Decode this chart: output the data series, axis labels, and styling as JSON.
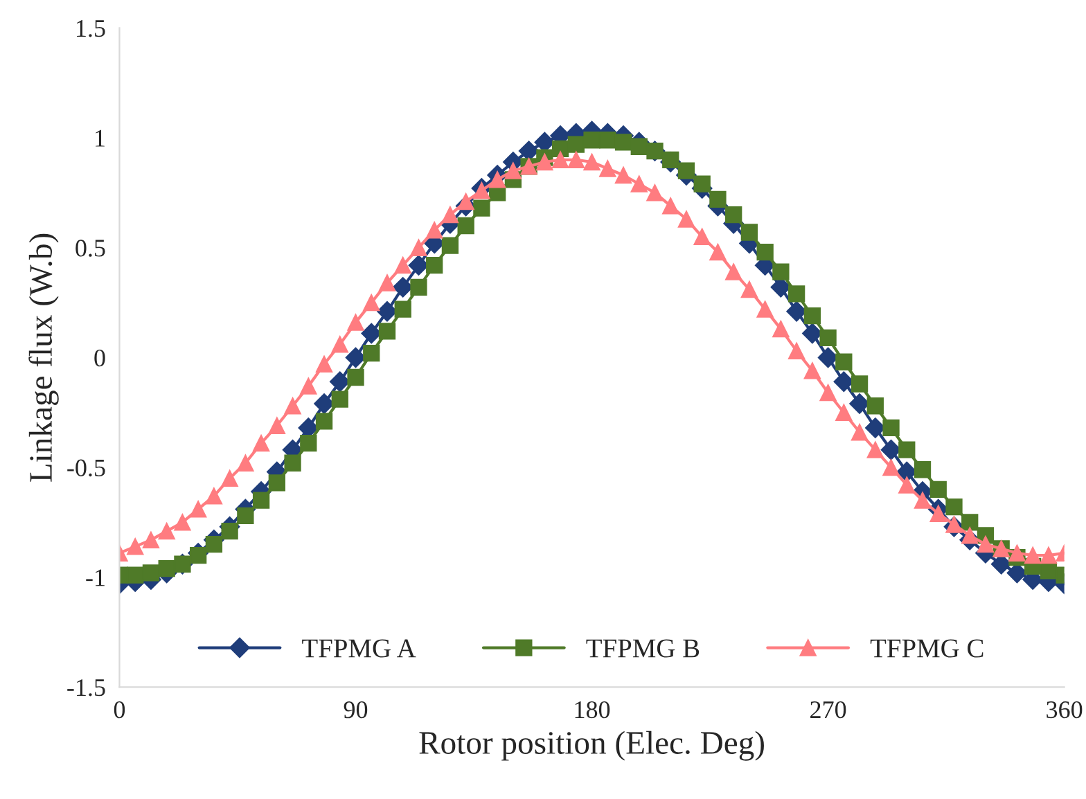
{
  "chart_data": {
    "type": "line",
    "xlabel": "Rotor position (Elec. Deg)",
    "ylabel": "Linkage flux (W.b)",
    "x": [
      0,
      6,
      12,
      18,
      24,
      30,
      36,
      42,
      48,
      54,
      60,
      66,
      72,
      78,
      84,
      90,
      96,
      102,
      108,
      114,
      120,
      126,
      132,
      138,
      144,
      150,
      156,
      162,
      168,
      174,
      180,
      186,
      192,
      198,
      204,
      210,
      216,
      222,
      228,
      234,
      240,
      246,
      252,
      258,
      264,
      270,
      276,
      282,
      288,
      294,
      300,
      306,
      312,
      318,
      324,
      330,
      336,
      342,
      348,
      354,
      360
    ],
    "series": [
      {
        "name": "TFPMG A",
        "color": "#1f3d7a",
        "marker": "diamond",
        "values": [
          -1.03,
          -1.02,
          -1.01,
          -0.98,
          -0.94,
          -0.89,
          -0.83,
          -0.77,
          -0.69,
          -0.61,
          -0.52,
          -0.42,
          -0.32,
          -0.21,
          -0.11,
          0,
          0.11,
          0.21,
          0.32,
          0.42,
          0.52,
          0.61,
          0.69,
          0.77,
          0.83,
          0.89,
          0.94,
          0.98,
          1.01,
          1.02,
          1.03,
          1.02,
          1.01,
          0.98,
          0.94,
          0.89,
          0.83,
          0.77,
          0.69,
          0.61,
          0.52,
          0.42,
          0.32,
          0.21,
          0.11,
          0,
          -0.11,
          -0.21,
          -0.32,
          -0.42,
          -0.52,
          -0.61,
          -0.69,
          -0.77,
          -0.83,
          -0.89,
          -0.94,
          -0.98,
          -1.01,
          -1.02,
          -1.03
        ]
      },
      {
        "name": "TFPMG B",
        "color": "#4f7a28",
        "marker": "square",
        "values": [
          -0.99,
          -0.99,
          -0.98,
          -0.96,
          -0.94,
          -0.9,
          -0.85,
          -0.79,
          -0.72,
          -0.65,
          -0.57,
          -0.48,
          -0.39,
          -0.29,
          -0.19,
          -0.09,
          0.02,
          0.12,
          0.22,
          0.32,
          0.42,
          0.51,
          0.6,
          0.68,
          0.75,
          0.81,
          0.87,
          0.91,
          0.95,
          0.97,
          0.99,
          0.99,
          0.98,
          0.96,
          0.94,
          0.9,
          0.85,
          0.79,
          0.72,
          0.65,
          0.57,
          0.48,
          0.39,
          0.29,
          0.19,
          0.09,
          -0.02,
          -0.12,
          -0.22,
          -0.32,
          -0.42,
          -0.51,
          -0.6,
          -0.68,
          -0.75,
          -0.81,
          -0.87,
          -0.91,
          -0.95,
          -0.97,
          -0.99
        ]
      },
      {
        "name": "TFPMG C",
        "color": "#ff7c80",
        "marker": "triangle",
        "values": [
          -0.89,
          -0.86,
          -0.83,
          -0.79,
          -0.75,
          -0.69,
          -0.63,
          -0.55,
          -0.48,
          -0.39,
          -0.31,
          -0.22,
          -0.13,
          -0.03,
          0.06,
          0.16,
          0.25,
          0.34,
          0.42,
          0.5,
          0.58,
          0.65,
          0.71,
          0.76,
          0.81,
          0.85,
          0.87,
          0.89,
          0.9,
          0.9,
          0.89,
          0.86,
          0.83,
          0.79,
          0.75,
          0.69,
          0.63,
          0.55,
          0.48,
          0.39,
          0.31,
          0.22,
          0.13,
          0.03,
          -0.06,
          -0.16,
          -0.25,
          -0.34,
          -0.42,
          -0.5,
          -0.58,
          -0.65,
          -0.71,
          -0.76,
          -0.81,
          -0.85,
          -0.87,
          -0.89,
          -0.9,
          -0.9,
          -0.89
        ]
      }
    ],
    "xlim": [
      0,
      360
    ],
    "xticks": [
      0,
      90,
      180,
      270,
      360
    ],
    "ylim": [
      -1.5,
      1.5
    ],
    "yticks": [
      -1.5,
      -1,
      -0.5,
      0,
      0.5,
      1,
      1.5
    ],
    "grid": false,
    "legend": "bottom",
    "line_style": "solid"
  }
}
